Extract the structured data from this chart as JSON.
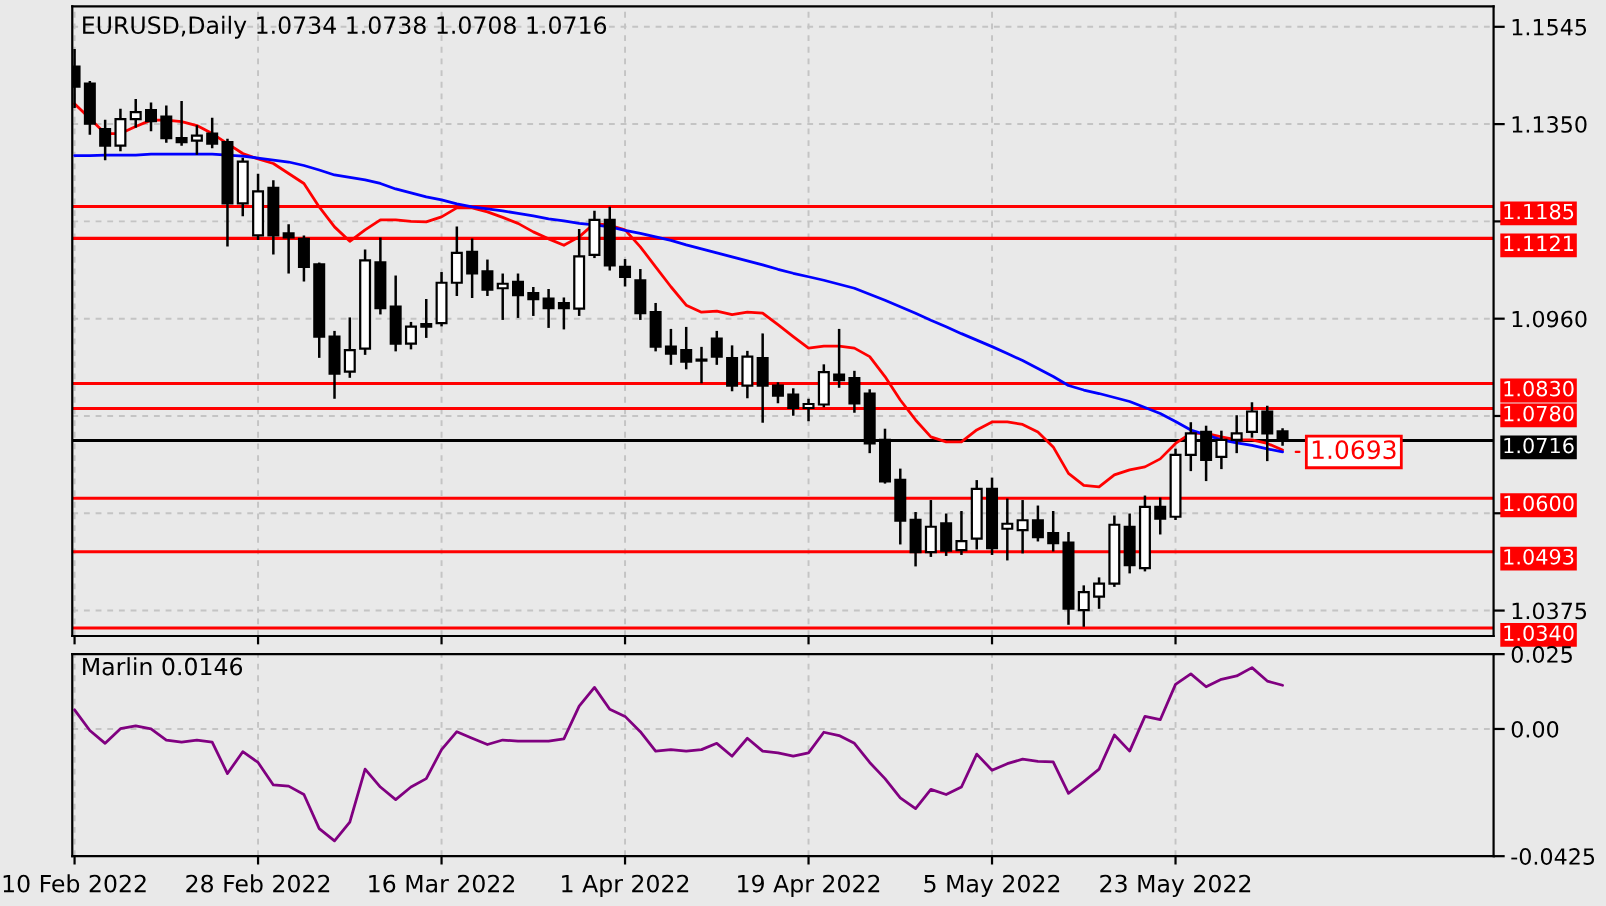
{
  "chart_data": [
    {
      "type": "candlestick",
      "title": "EURUSD,Daily 1.0734 1.0738 1.0708 1.0716",
      "categories": [
        null,
        null,
        null,
        null,
        null,
        null,
        null,
        null,
        null,
        null,
        null,
        null,
        null,
        null,
        null,
        null,
        null,
        null,
        null,
        null,
        null,
        null,
        null,
        null,
        null,
        null,
        null,
        null,
        null,
        null,
        null,
        null,
        null,
        null,
        null,
        null,
        null,
        null,
        null,
        null,
        null,
        null,
        null,
        null,
        null,
        null,
        null,
        null,
        null,
        null,
        null,
        null,
        null,
        null,
        null,
        null,
        null,
        null,
        null,
        null,
        null,
        null,
        null,
        null,
        null,
        null,
        null,
        null,
        null,
        null,
        null,
        null,
        null,
        null,
        null,
        null,
        null,
        null,
        null,
        null
      ],
      "ohlc": [
        [
          1.1465,
          1.1498,
          1.1385,
          1.1425
        ],
        [
          1.1431,
          1.1434,
          1.1331,
          1.1351
        ],
        [
          1.134,
          1.1356,
          1.128,
          1.1307
        ],
        [
          1.1307,
          1.1378,
          1.1298,
          1.136
        ],
        [
          1.136,
          1.1398,
          1.1345,
          1.1374
        ],
        [
          1.1378,
          1.1391,
          1.1338,
          1.1356
        ],
        [
          1.1365,
          1.1385,
          1.1315,
          1.1322
        ],
        [
          1.1322,
          1.1394,
          1.1309,
          1.1314
        ],
        [
          1.1317,
          1.1345,
          1.1291,
          1.1327
        ],
        [
          1.1331,
          1.136,
          1.1304,
          1.1311
        ],
        [
          1.1314,
          1.1318,
          1.1107,
          1.1191
        ],
        [
          1.1191,
          1.128,
          1.1168,
          1.1275
        ],
        [
          1.1127,
          1.1248,
          1.112,
          1.1215
        ],
        [
          1.1222,
          1.1235,
          1.1091,
          1.1127
        ],
        [
          1.1131,
          1.1147,
          1.1053,
          1.1123
        ],
        [
          1.112,
          1.1124,
          1.1037,
          1.1064
        ],
        [
          1.1069,
          1.107,
          1.0884,
          1.0924
        ],
        [
          1.0924,
          1.0933,
          1.0802,
          1.085
        ],
        [
          1.0854,
          1.096,
          1.0844,
          1.0897
        ],
        [
          1.09,
          1.1096,
          1.089,
          1.1077
        ],
        [
          1.1073,
          1.112,
          1.0971,
          1.0981
        ],
        [
          1.0984,
          1.1044,
          1.0897,
          1.091
        ],
        [
          1.091,
          1.0951,
          1.0901,
          1.0944
        ],
        [
          1.0949,
          1.0997,
          1.0924,
          1.0944
        ],
        [
          1.0951,
          1.1051,
          1.0947,
          1.1032
        ],
        [
          1.1032,
          1.1142,
          1.1008,
          1.1092
        ],
        [
          1.1094,
          1.1118,
          1.1004,
          1.1051
        ],
        [
          1.1055,
          1.1076,
          1.1008,
          1.1018
        ],
        [
          1.1021,
          1.1048,
          1.096,
          1.103
        ],
        [
          1.1034,
          1.1048,
          1.0964,
          1.1007
        ],
        [
          1.1011,
          1.1021,
          1.0968,
          1.0999
        ],
        [
          1.1,
          1.1017,
          1.0944,
          1.0981
        ],
        [
          1.0991,
          1.1,
          1.0941,
          1.0981
        ],
        [
          1.098,
          1.1137,
          1.0968,
          1.1085
        ],
        [
          1.1088,
          1.1174,
          1.1084,
          1.1158
        ],
        [
          1.1158,
          1.1182,
          1.1059,
          1.1067
        ],
        [
          1.1064,
          1.1077,
          1.1027,
          1.1044
        ],
        [
          1.1037,
          1.1057,
          1.096,
          1.0971
        ],
        [
          1.0973,
          1.0989,
          1.0897,
          1.0904
        ],
        [
          1.0904,
          1.0937,
          1.087,
          1.089
        ],
        [
          1.0897,
          1.0941,
          1.0861,
          1.0874
        ],
        [
          1.0878,
          1.0901,
          1.0833,
          1.0876
        ],
        [
          1.092,
          1.0933,
          1.087,
          1.0884
        ],
        [
          1.0881,
          1.0904,
          1.0817,
          1.0826
        ],
        [
          1.0826,
          1.0893,
          1.0803,
          1.0884
        ],
        [
          1.0881,
          1.0928,
          1.0754,
          1.0826
        ],
        [
          1.0826,
          1.083,
          1.0793,
          1.0806
        ],
        [
          1.0808,
          1.0818,
          1.0768,
          1.0781
        ],
        [
          1.0781,
          1.0797,
          1.0757,
          1.0789
        ],
        [
          1.0788,
          1.0866,
          1.0785,
          1.0853
        ],
        [
          1.0848,
          1.0937,
          1.0824,
          1.0837
        ],
        [
          1.0841,
          1.0853,
          1.0774,
          1.079
        ],
        [
          1.081,
          1.0816,
          1.0693,
          1.071
        ],
        [
          1.0717,
          1.0737,
          1.0632,
          1.0634
        ],
        [
          1.0637,
          1.0657,
          1.051,
          1.0555
        ],
        [
          1.0557,
          1.057,
          1.0466,
          1.0492
        ],
        [
          1.0492,
          1.0594,
          1.0485,
          1.0543
        ],
        [
          1.055,
          1.0567,
          1.0487,
          1.0495
        ],
        [
          1.0496,
          1.0572,
          1.0489,
          1.0514
        ],
        [
          1.0519,
          1.0634,
          1.05,
          1.0619
        ],
        [
          1.0619,
          1.0639,
          1.0489,
          1.05
        ],
        [
          1.0539,
          1.0597,
          1.0478,
          1.0549
        ],
        [
          1.0536,
          1.0594,
          1.0492,
          1.0556
        ],
        [
          1.0556,
          1.0583,
          1.0516,
          1.0522
        ],
        [
          1.053,
          1.0572,
          1.0496,
          1.051
        ],
        [
          1.0511,
          1.053,
          1.0349,
          1.0379
        ],
        [
          1.0376,
          1.0423,
          1.0345,
          1.0412
        ],
        [
          1.0403,
          1.0439,
          1.0381,
          1.0429
        ],
        [
          1.0429,
          1.0563,
          1.0425,
          1.0547
        ],
        [
          1.0543,
          1.0567,
          1.0452,
          1.0466
        ],
        [
          1.046,
          1.0603,
          1.0456,
          1.0583
        ],
        [
          1.0583,
          1.0599,
          1.053,
          1.0559
        ],
        [
          1.0563,
          1.0697,
          1.0559,
          1.0687
        ],
        [
          1.0687,
          1.075,
          1.0657,
          1.073
        ],
        [
          1.0733,
          1.0743,
          1.0637,
          1.0677
        ],
        [
          1.0683,
          1.0733,
          1.0661,
          1.0717
        ],
        [
          1.0717,
          1.0764,
          1.0693,
          1.073
        ],
        [
          1.0733,
          1.079,
          1.0724,
          1.0774
        ],
        [
          1.0774,
          1.0783,
          1.0677,
          1.073
        ],
        [
          1.0734,
          1.0738,
          1.0708,
          1.0716
        ]
      ],
      "series": [
        {
          "type": "line",
          "color": "#ff0000",
          "values": [
            1.1391,
            1.1361,
            1.1331,
            1.1331,
            1.1345,
            1.1358,
            1.1358,
            1.1355,
            1.1347,
            1.1331,
            1.1311,
            1.1291,
            1.128,
            1.1271,
            1.1251,
            1.1231,
            1.1184,
            1.1144,
            1.1115,
            1.1138,
            1.1158,
            1.1158,
            1.1155,
            1.1154,
            1.1164,
            1.1182,
            1.1182,
            1.1174,
            1.1163,
            1.1151,
            1.1134,
            1.112,
            1.1107,
            1.1124,
            1.1151,
            1.1147,
            1.1138,
            1.1104,
            1.1064,
            1.1024,
            1.0987,
            1.0973,
            1.0975,
            1.0968,
            1.0973,
            1.0971,
            1.0948,
            1.0924,
            1.0901,
            1.0905,
            1.0905,
            1.0901,
            1.0884,
            1.0844,
            1.0797,
            1.0757,
            1.0723,
            1.0713,
            1.0713,
            1.0737,
            1.0753,
            1.0753,
            1.0748,
            1.0733,
            1.0703,
            1.065,
            1.0626,
            1.0623,
            1.0647,
            1.0657,
            1.0663,
            1.0679,
            1.071,
            1.073,
            1.073,
            1.0723,
            1.0717,
            1.0717,
            1.071,
            1.0697
          ]
        },
        {
          "type": "line",
          "color": "#0000ff",
          "values": [
            1.1287,
            1.1287,
            1.1288,
            1.1288,
            1.1288,
            1.129,
            1.129,
            1.129,
            1.129,
            1.129,
            1.1288,
            1.1286,
            1.1282,
            1.1278,
            1.1274,
            1.1267,
            1.1258,
            1.1248,
            1.1243,
            1.1238,
            1.1231,
            1.122,
            1.1212,
            1.1204,
            1.1198,
            1.119,
            1.1184,
            1.118,
            1.1176,
            1.1171,
            1.1166,
            1.116,
            1.1156,
            1.1151,
            1.1148,
            1.1144,
            1.1137,
            1.1131,
            1.1124,
            1.1117,
            1.1108,
            1.11,
            1.1092,
            1.1084,
            1.1076,
            1.1068,
            1.1059,
            1.1051,
            1.1044,
            1.1037,
            1.1029,
            1.1021,
            1.1009,
            1.0997,
            1.0984,
            1.0971,
            1.0957,
            1.0944,
            1.093,
            1.0917,
            1.0904,
            1.089,
            1.0876,
            1.086,
            1.0844,
            1.0826,
            1.0817,
            1.081,
            1.0802,
            1.0794,
            1.0782,
            1.077,
            1.0754,
            1.0737,
            1.0727,
            1.0717,
            1.0711,
            1.0706,
            1.0699,
            1.0693
          ]
        }
      ],
      "ylim": [
        1.0324,
        1.1586
      ],
      "yticks": [
        1.1545,
        {
          "value": 1.135,
          "label": "1.1350"
        },
        {
          "value": 1.1155,
          "label": null
        },
        {
          "value": 1.096,
          "label": "1.0960"
        },
        {
          "value": 1.0765,
          "label": null
        },
        {
          "value": 1.057,
          "label": null
        },
        1.0375
      ],
      "ref_lines": [
        {
          "axis": "y",
          "value": 1.1185,
          "label": "1.1185",
          "color": "#ff0000"
        },
        {
          "axis": "y",
          "value": 1.1121,
          "label": "1.1121",
          "color": "#ff0000"
        },
        {
          "axis": "y",
          "value": 1.083,
          "label": "1.0830",
          "color": "#ff0000"
        },
        {
          "axis": "y",
          "value": 1.078,
          "label": "1.0780",
          "color": "#ff0000"
        },
        {
          "axis": "y",
          "value": 1.0716,
          "label": "1.0716",
          "color": "#000000"
        },
        {
          "axis": "y",
          "value": 1.06,
          "label": "1.0600",
          "color": "#ff0000"
        },
        {
          "axis": "y",
          "value": 1.0493,
          "label": "1.0493",
          "color": "#ff0000"
        },
        {
          "axis": "y",
          "value": 1.034,
          "label": "1.0340",
          "color": "#ff0000"
        }
      ],
      "annotations": [
        "1.0693"
      ],
      "grid": true
    },
    {
      "type": "line",
      "title": "Marlin 0.0146",
      "categories": [
        "10 Feb 2022",
        null,
        null,
        null,
        null,
        null,
        null,
        null,
        null,
        null,
        null,
        null,
        "28 Feb 2022",
        null,
        null,
        null,
        null,
        null,
        null,
        null,
        null,
        null,
        null,
        null,
        "16 Mar 2022",
        null,
        null,
        null,
        null,
        null,
        null,
        null,
        null,
        null,
        null,
        null,
        "1 Apr 2022",
        null,
        null,
        null,
        null,
        null,
        null,
        null,
        null,
        null,
        null,
        null,
        "19 Apr 2022",
        null,
        null,
        null,
        null,
        null,
        null,
        null,
        null,
        null,
        null,
        null,
        "5 May 2022",
        null,
        null,
        null,
        null,
        null,
        null,
        null,
        null,
        null,
        null,
        null,
        "23 May 2022",
        null,
        null,
        null,
        null,
        null,
        null,
        null
      ],
      "series": [
        {
          "color": "#800080",
          "values": [
            0.0064,
            -0.0005,
            -0.0048,
            0.0001,
            0.001,
            0.0,
            -0.0037,
            -0.0044,
            -0.0037,
            -0.0044,
            -0.0149,
            -0.0076,
            -0.0112,
            -0.0187,
            -0.0191,
            -0.0219,
            -0.0333,
            -0.0374,
            -0.0311,
            -0.0134,
            -0.0194,
            -0.0236,
            -0.0194,
            -0.0166,
            -0.0069,
            -0.0009,
            -0.0031,
            -0.0052,
            -0.0037,
            -0.0041,
            -0.0041,
            -0.0041,
            -0.0033,
            0.0076,
            0.0139,
            0.0066,
            0.0042,
            -0.0009,
            -0.0074,
            -0.0069,
            -0.0074,
            -0.0069,
            -0.0048,
            -0.0091,
            -0.0031,
            -0.0074,
            -0.008,
            -0.0091,
            -0.008,
            -0.0011,
            -0.0022,
            -0.0048,
            -0.0112,
            -0.0166,
            -0.023,
            -0.0266,
            -0.0202,
            -0.0219,
            -0.0194,
            -0.0084,
            -0.0138,
            -0.0116,
            -0.0101,
            -0.0108,
            -0.011,
            -0.0215,
            -0.0176,
            -0.0134,
            -0.002,
            -0.0074,
            0.0042,
            0.0031,
            0.0149,
            0.0184,
            0.0141,
            0.0166,
            0.0177,
            0.0205,
            0.016,
            0.0146
          ]
        }
      ],
      "ylim": [
        -0.0425,
        0.025
      ],
      "yticks": [
        0.025,
        {
          "value": 0,
          "label": "0.00"
        },
        -0.0425
      ],
      "grid": true
    }
  ]
}
